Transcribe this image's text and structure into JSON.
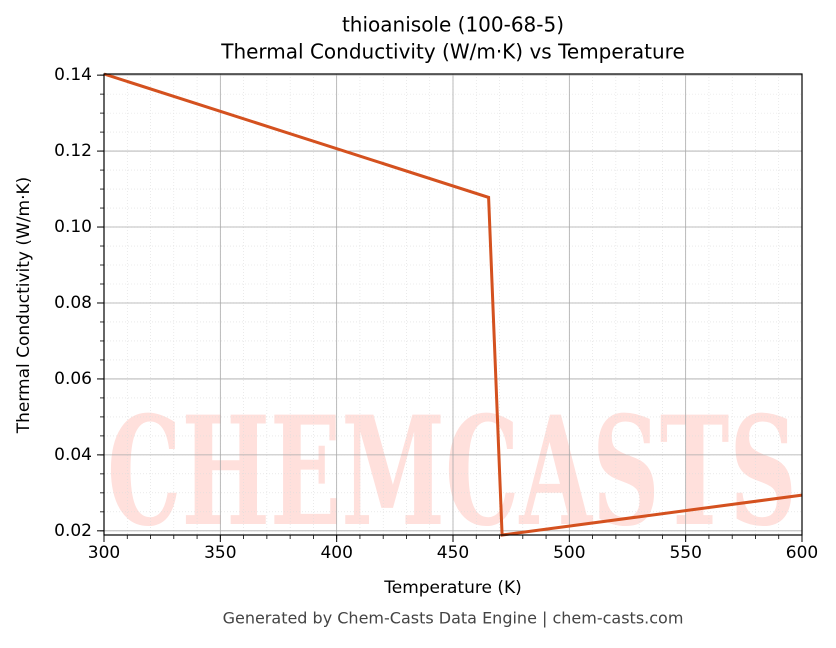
{
  "chart_data": {
    "type": "line",
    "title": "thioanisole (100-68-5)",
    "subtitle": "Thermal Conductivity (W/m·K) vs Temperature",
    "x_label": "Temperature (K)",
    "y_label": "Thermal Conductivity (W/m·K)",
    "footer": "Generated by Chem-Casts Data Engine | chem-casts.com",
    "watermark": "CHEMCASTS",
    "x": [
      300,
      465.3,
      471.1,
      600
    ],
    "series": [
      {
        "name": "thioanisole",
        "color": "#d4511f",
        "values": [
          0.1403,
          0.1078,
          0.0189,
          0.0294
        ]
      }
    ],
    "xlim": [
      300,
      600
    ],
    "xticks": [
      300,
      350,
      400,
      450,
      500,
      550,
      600
    ],
    "ylim": [
      0.0189,
      0.1403
    ],
    "yticks": [
      0.02,
      0.04,
      0.06,
      0.08,
      {
        "value": 0.1,
        "label": "0.10"
      },
      0.12,
      0.14
    ],
    "grid": true,
    "minor_grid": true
  }
}
